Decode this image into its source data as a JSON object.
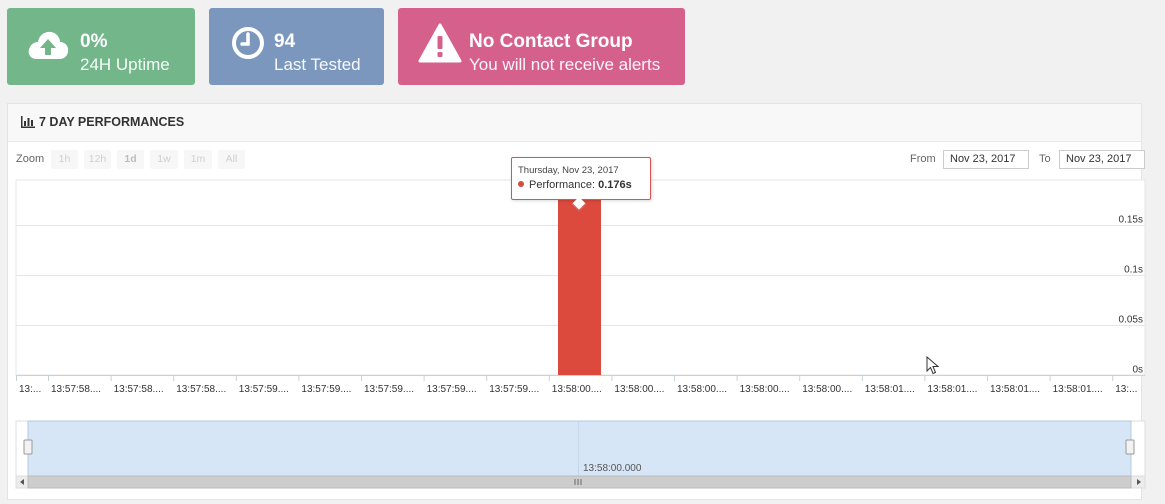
{
  "stats": [
    {
      "value": "0%",
      "label": "24H Uptime",
      "icon": "cloud-upload-icon",
      "color": "#72b68a"
    },
    {
      "value": "94",
      "label": "Last Tested",
      "icon": "clock-icon",
      "color": "#7b97bd"
    },
    {
      "value": "No Contact Group",
      "label": "You will not receive alerts",
      "icon": "warning-icon",
      "color": "#d6608c"
    }
  ],
  "panel": {
    "title": "7 DAY PERFORMANCES",
    "icon": "bar-chart-icon"
  },
  "zoom": {
    "label": "Zoom",
    "buttons": [
      "1h",
      "12h",
      "1d",
      "1w",
      "1m",
      "All"
    ]
  },
  "range": {
    "from_label": "From",
    "from_value": "Nov 23, 2017",
    "to_label": "To",
    "to_value": "Nov 23, 2017"
  },
  "tooltip": {
    "date": "Thursday, Nov 23, 2017",
    "series": "Performance:",
    "value": "0.176s"
  },
  "chart_data": {
    "type": "bar",
    "series": [
      {
        "name": "Performance",
        "color": "#db4a3c"
      }
    ],
    "x_tick_labels": [
      "13:...",
      "13:57:58....",
      "13:57:58....",
      "13:57:58....",
      "13:57:59....",
      "13:57:59....",
      "13:57:59....",
      "13:57:59....",
      "13:57:59....",
      "13:58:00....",
      "13:58:00....",
      "13:58:00....",
      "13:58:00....",
      "13:58:00....",
      "13:58:01....",
      "13:58:01....",
      "13:58:01....",
      "13:58:01....",
      "13:..."
    ],
    "y_ticks": [
      0,
      0.05,
      0.1,
      0.15
    ],
    "y_tick_labels": [
      "0s",
      "0.05s",
      "0.1s",
      "0.15s"
    ],
    "ylim": [
      0,
      0.195
    ],
    "bar": {
      "x_label": "13:58:00.000",
      "value": 0.176
    },
    "navigator_label": "13:58:00.000",
    "grid": true
  }
}
